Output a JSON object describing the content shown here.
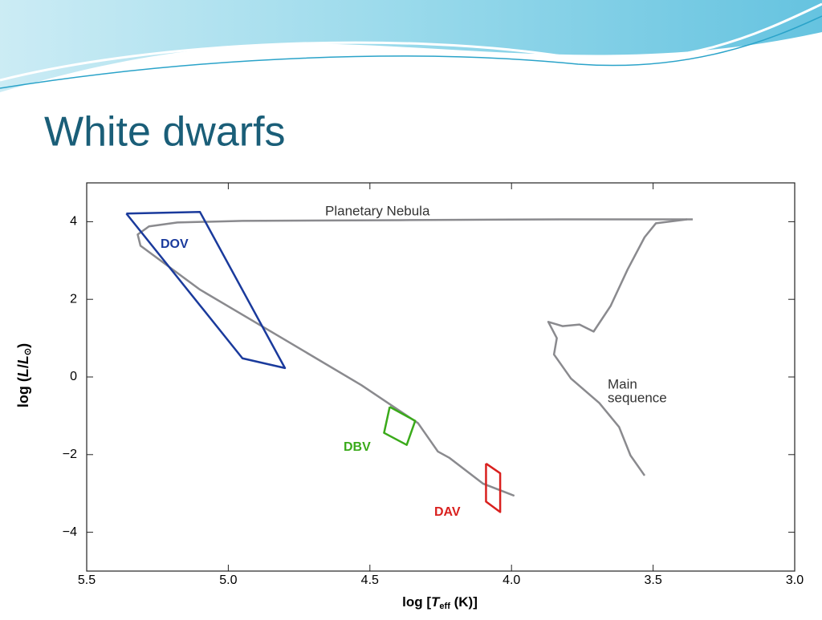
{
  "slide_title": "White dwarfs",
  "chart_data": {
    "type": "line",
    "xlabel": [
      "log [",
      "T",
      "eff",
      " (K)]"
    ],
    "ylabel": [
      "log (",
      "L",
      "/",
      "L",
      "⊙",
      ")"
    ],
    "xlim": [
      5.5,
      3.0
    ],
    "xticks": [
      {
        "value": 5.5,
        "label": "5.5"
      },
      {
        "value": 5.0,
        "label": "5.0"
      },
      {
        "value": 4.5,
        "label": "4.5"
      },
      {
        "value": 4.0,
        "label": "4.0"
      },
      {
        "value": 3.5,
        "label": "3.5"
      },
      {
        "value": 3.0,
        "label": "3.0"
      }
    ],
    "ylim": [
      -5,
      5
    ],
    "yticks": [
      {
        "value": -4,
        "label": "−4"
      },
      {
        "value": -2,
        "label": "−2"
      },
      0,
      2,
      4
    ],
    "series": [
      {
        "color": "#8a8a8e",
        "x": [
          3.36,
          3.82,
          4.39,
          4.95,
          5.18,
          5.28,
          5.32,
          5.31,
          5.1,
          4.81,
          4.53,
          4.33,
          4.26,
          4.22,
          4.1,
          3.99
        ],
        "values": [
          4.06,
          4.06,
          4.04,
          4.02,
          3.98,
          3.88,
          3.67,
          3.38,
          2.25,
          1.0,
          -0.21,
          -1.19,
          -1.92,
          -2.08,
          -2.75,
          -3.06
        ]
      },
      {
        "color": "#8a8a8e",
        "x": [
          3.38,
          3.49,
          3.53,
          3.59,
          3.65,
          3.71,
          3.76,
          3.82,
          3.87,
          3.84,
          3.85,
          3.79,
          3.69,
          3.62,
          3.58,
          3.53
        ],
        "values": [
          4.06,
          3.96,
          3.6,
          2.77,
          1.83,
          1.17,
          1.35,
          1.31,
          1.42,
          1.0,
          0.58,
          -0.04,
          -0.67,
          -1.29,
          -2.02,
          -2.54
        ]
      },
      {
        "name": "DOV",
        "color": "#1a3a9c",
        "x": [
          5.36,
          5.1,
          4.8,
          4.95,
          5.36
        ],
        "values": [
          4.21,
          4.25,
          0.23,
          0.48,
          4.21
        ]
      },
      {
        "name": "DBV",
        "color": "#3aaa1a",
        "x": [
          4.43,
          4.34,
          4.37,
          4.45,
          4.43
        ],
        "values": [
          -0.77,
          -1.13,
          -1.75,
          -1.44,
          -0.77
        ]
      },
      {
        "name": "DAV",
        "color": "#d9201e",
        "x": [
          4.09,
          4.04,
          4.04,
          4.09,
          4.09
        ],
        "values": [
          -2.23,
          -2.48,
          -3.48,
          -3.21,
          -2.23
        ]
      }
    ],
    "annotations": [
      {
        "lines": [
          "Planetary Nebula"
        ]
      },
      {
        "lines": [
          "Main",
          "sequence"
        ]
      }
    ]
  }
}
